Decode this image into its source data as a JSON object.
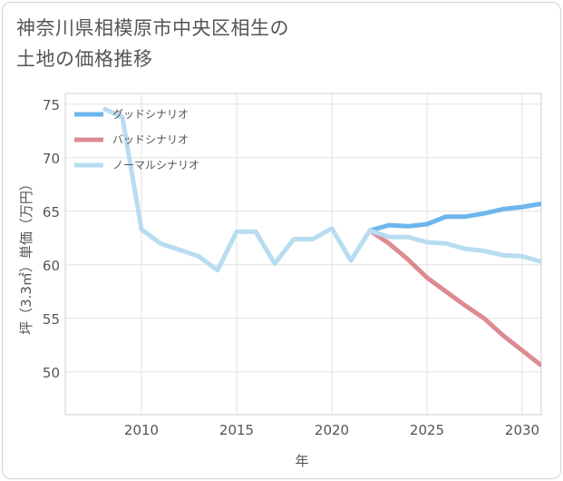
{
  "chart_data": {
    "type": "line",
    "title": "神奈川県相模原市中央区相生の土地の価格推移",
    "title_lines": [
      "神奈川県相模原市中央区相生の",
      "土地の価格推移"
    ],
    "xlabel": "年",
    "ylabel": "坪（3.3㎡）単価（万円）",
    "xlim": [
      2006,
      2031
    ],
    "ylim": [
      46,
      76
    ],
    "xticks": [
      2010,
      2015,
      2020,
      2025,
      2030
    ],
    "yticks": [
      50,
      55,
      60,
      65,
      70,
      75
    ],
    "grid": true,
    "legend_position": "top-left",
    "series": [
      {
        "name": "グッドシナリオ",
        "color": "#6cb6ec",
        "x": [
          2022,
          2023,
          2024,
          2025,
          2026,
          2027,
          2028,
          2029,
          2030,
          2031
        ],
        "values": [
          63.2,
          63.7,
          63.6,
          63.8,
          64.5,
          64.5,
          64.8,
          65.2,
          65.4,
          65.7
        ]
      },
      {
        "name": "バッドシナリオ",
        "color": "#dd8a93",
        "x": [
          2022,
          2023,
          2024,
          2025,
          2026,
          2027,
          2028,
          2029,
          2030,
          2031
        ],
        "values": [
          63.2,
          62.0,
          60.5,
          58.8,
          57.5,
          56.2,
          55.0,
          53.4,
          52.0,
          50.6
        ]
      },
      {
        "name": "ノーマルシナリオ",
        "color": "#b8dcf0",
        "x": [
          2008,
          2009,
          2010,
          2011,
          2012,
          2013,
          2014,
          2015,
          2016,
          2017,
          2018,
          2019,
          2020,
          2021,
          2022,
          2023,
          2024,
          2025,
          2026,
          2027,
          2028,
          2029,
          2030,
          2031
        ],
        "values": [
          74.6,
          73.8,
          63.3,
          62.0,
          61.4,
          60.8,
          59.5,
          63.1,
          63.1,
          60.1,
          62.4,
          62.4,
          63.4,
          60.4,
          63.2,
          62.6,
          62.6,
          62.1,
          62.0,
          61.5,
          61.3,
          60.9,
          60.8,
          60.3
        ]
      }
    ]
  }
}
